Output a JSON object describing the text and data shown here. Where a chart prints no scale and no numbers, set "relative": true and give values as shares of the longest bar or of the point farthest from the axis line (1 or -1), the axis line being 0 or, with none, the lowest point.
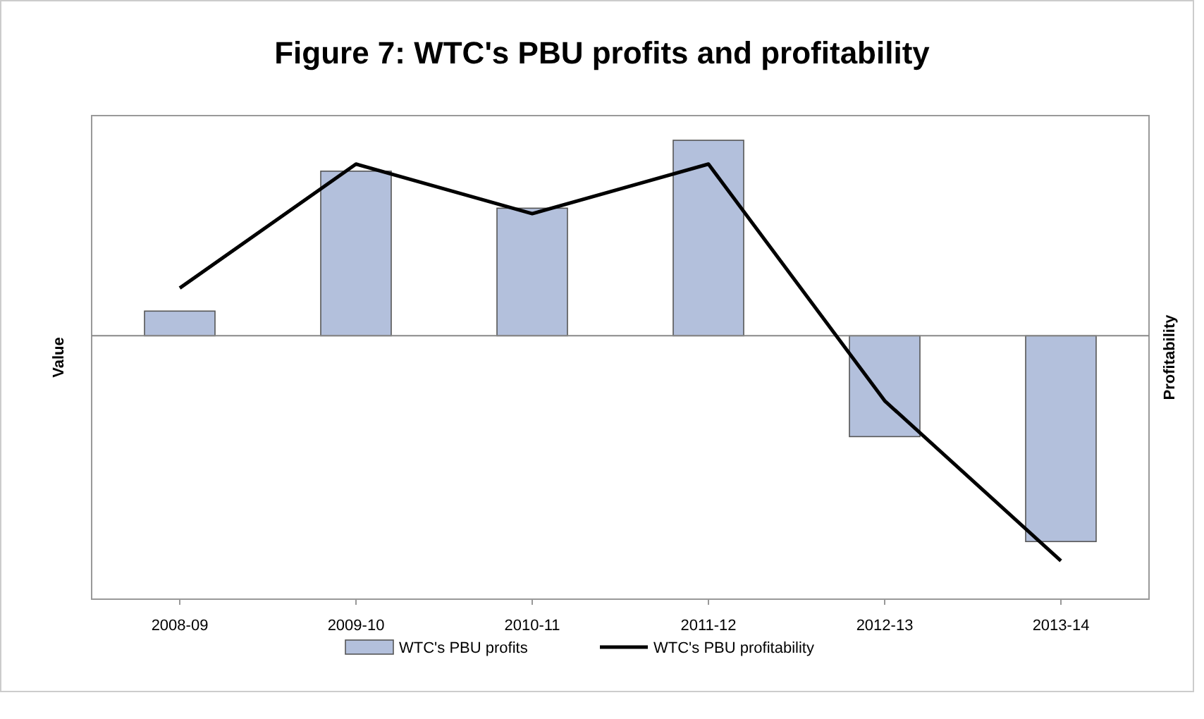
{
  "chart_data": {
    "type": "bar",
    "title": "Figure 7: WTC's PBU profits and profitability",
    "ylabel": "Value",
    "y2label": "Profitability",
    "relative": true,
    "categories": [
      "2008-09",
      "2009-10",
      "2010-11",
      "2011-12",
      "2012-13",
      "2013-14"
    ],
    "series": [
      {
        "name": "WTC's PBU profits",
        "color": "#b3c0dc",
        "values": [
          0.12,
          0.8,
          0.62,
          0.95,
          -0.49,
          -1
        ]
      },
      {
        "name": "WTC's PBU profitability",
        "type": "line",
        "axis": "y2",
        "color": "#000000",
        "values": [
          0.21,
          0.76,
          0.54,
          0.76,
          -0.29,
          -1
        ]
      }
    ],
    "legend": "bottom",
    "line_style": "solid"
  }
}
